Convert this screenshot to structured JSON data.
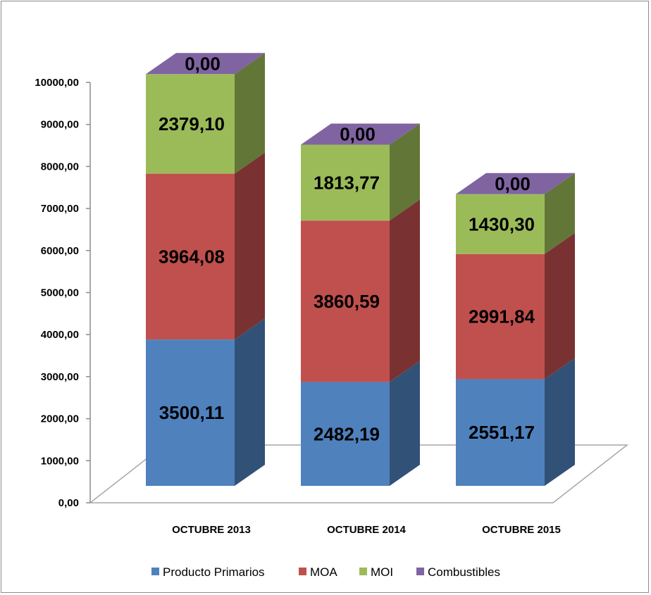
{
  "chart_data": {
    "type": "bar",
    "stacked": true,
    "style": "3d",
    "categories": [
      "OCTUBRE 2013",
      "OCTUBRE 2014",
      "OCTUBRE 2015"
    ],
    "series": [
      {
        "name": "Producto Primarios",
        "values": [
          3500.11,
          2482.19,
          2551.17
        ],
        "labels": [
          "3500,11",
          "2482,19",
          "2551,17"
        ],
        "color": "#4f81bd"
      },
      {
        "name": "MOA",
        "values": [
          3964.08,
          3860.59,
          2991.84
        ],
        "labels": [
          "3964,08",
          "3860,59",
          "2991,84"
        ],
        "color": "#c0504d"
      },
      {
        "name": "MOI",
        "values": [
          2379.1,
          1813.77,
          1430.3
        ],
        "labels": [
          "2379,10",
          "1813,77",
          "1430,30"
        ],
        "color": "#9bbb59"
      },
      {
        "name": "Combustibles",
        "values": [
          0,
          0,
          0
        ],
        "labels": [
          "0,00",
          "0,00",
          "0,00"
        ],
        "color": "#8064a2"
      }
    ],
    "yticks": [
      "0,00",
      "1000,00",
      "2000,00",
      "3000,00",
      "4000,00",
      "5000,00",
      "6000,00",
      "7000,00",
      "8000,00",
      "9000,00",
      "10000,00"
    ],
    "ylim": [
      0,
      10000
    ],
    "title": "",
    "xlabel": "",
    "ylabel": "",
    "grid": false,
    "legend": "bottom"
  }
}
